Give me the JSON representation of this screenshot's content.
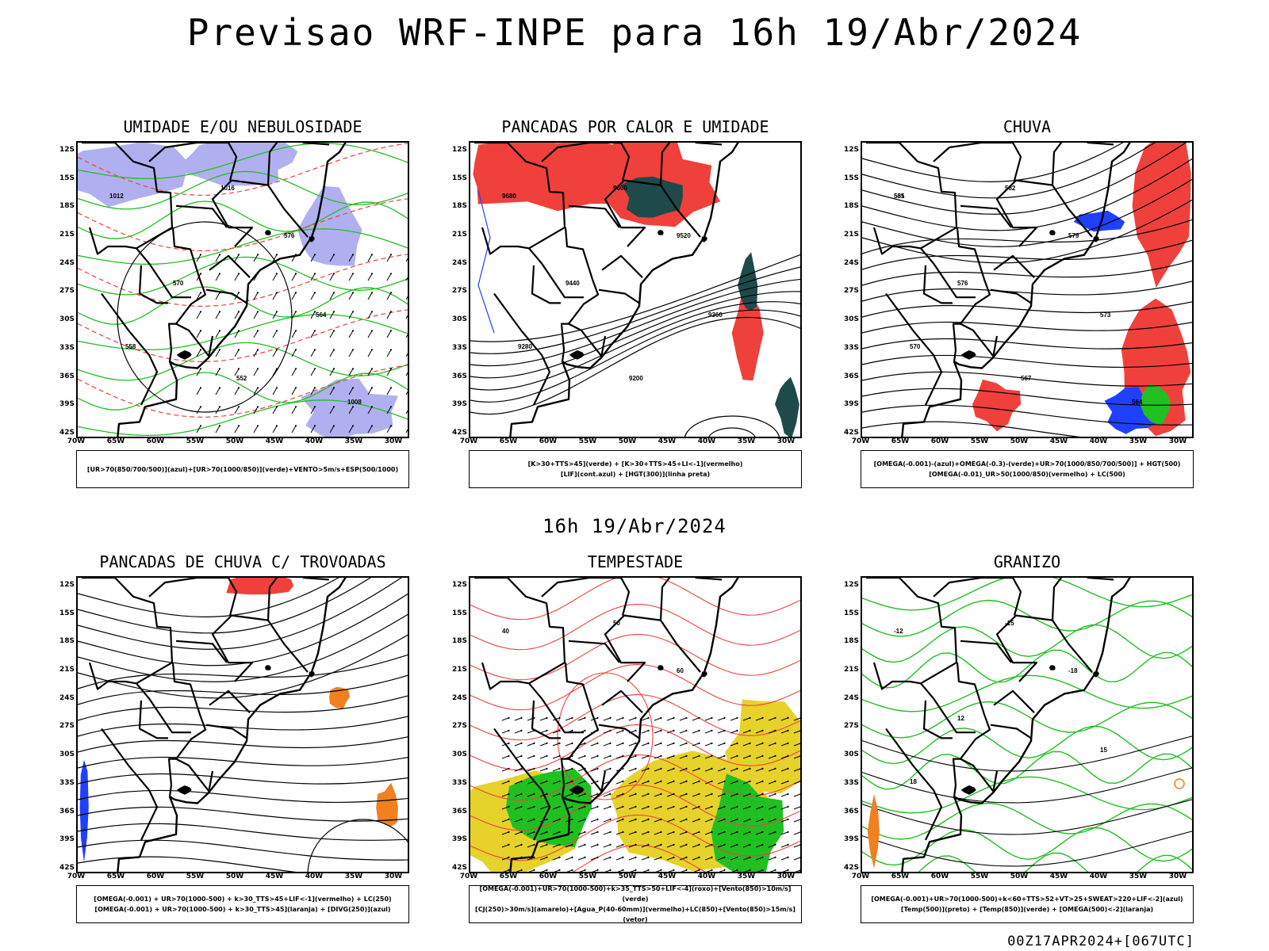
{
  "title": "Previsao WRF-INPE  para 16h 19/Abr/2024",
  "mid_title": "16h 19/Abr/2024",
  "footer": "00Z17APR2024+[067UTC]",
  "colors": {
    "red": "#f0403c",
    "green": "#20c020",
    "blue": "#2040ff",
    "lavender": "#b0b0f0",
    "darkteal": "#1f4a4a",
    "yellow": "#e6d22a",
    "orange": "#f08020"
  },
  "lat_labels": [
    "12S",
    "15S",
    "18S",
    "21S",
    "24S",
    "27S",
    "30S",
    "33S",
    "36S",
    "39S",
    "42S"
  ],
  "lon_labels": [
    "70W",
    "65W",
    "60W",
    "55W",
    "50W",
    "45W",
    "40W",
    "35W",
    "30W"
  ],
  "panels": [
    {
      "title": "UMIDADE E/OU NEBULOSIDADE",
      "legend": [
        "[UR>70(850/700/500)](azul)+[UR>70(1000/850)](verde)+VENTO>5m/s+ESP(500/1000)"
      ],
      "labels": [
        "1012",
        "1016",
        "576",
        "570",
        "564",
        "558",
        "552",
        "1008"
      ]
    },
    {
      "title": "PANCADAS POR CALOR E UMIDADE",
      "legend": [
        "[K>30+TTS>45](verde)  +  [K>30+TTS>45+LI<-1](vermelho)",
        "[LIF](cont.azul)  +  [HGT(300)](linha preta)"
      ],
      "labels": [
        "9680",
        "9600",
        "9520",
        "9440",
        "9360",
        "9280",
        "9200"
      ]
    },
    {
      "title": "CHUVA",
      "legend": [
        "[OMEGA(-0.001)-(azul)+OMEGA(-0.3)-(verde)+UR>70(1000/850/700/500)]  +  HGT(500)",
        "[OMEGA(-0.01)_UR>50(1000/850)(vermelho)  +  LC(500)"
      ],
      "labels": [
        "585",
        "582",
        "579",
        "576",
        "573",
        "570",
        "567",
        "564",
        "561"
      ]
    },
    {
      "title": "PANCADAS DE CHUVA C/ TROVOADAS",
      "legend": [
        "[OMEGA(-0.001)  +  UR>70(1000-500)  +  k>30_TTS>45+LIF<-1](vermelho)  +  LC(250)",
        "[OMEGA(-0.001)  +  UR>70(1000-500)  +  k>30_TTS>45](laranja)  +  [DIVG(250)](azul)"
      ],
      "labels": []
    },
    {
      "title": "TEMPESTADE",
      "legend": [
        "[OMEGA(-0.001)+UR>70(1000-500)+k>35_TTS>50+LIF<-4](roxo)+[Vento(850)>10m/s](verde)",
        "[CJ(250)>30m/s](amarelo)+[Agua_P(40-60mm)](vermelho)+LC(850)+[Vento(850)>15m/s](vetor)"
      ],
      "labels": [
        "40",
        "50",
        "60"
      ]
    },
    {
      "title": "GRANIZO",
      "legend": [
        "[OMEGA(-0.001)+UR>70(1000-500)+k<60+TTS>52+VT>25+SWEAT>220+LIF<-2](azul)",
        "[Temp(500)](preto)  +  [Temp(850)](verde)  +  [OMEGA(500)<-2](laranja)"
      ],
      "labels": [
        "-12",
        "-15",
        "-18",
        "12",
        "15",
        "18"
      ]
    }
  ]
}
